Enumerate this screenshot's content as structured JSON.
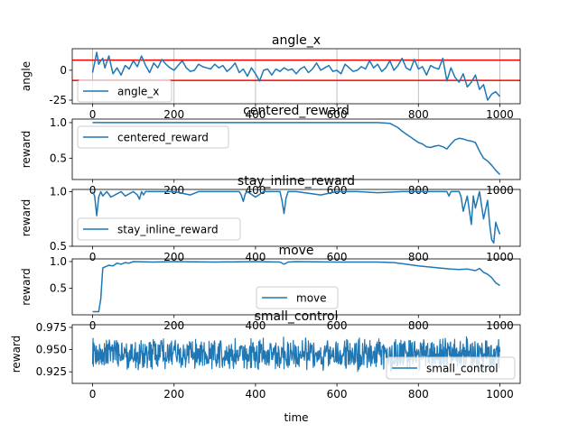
{
  "figure": {
    "xlabel": "time",
    "colors": {
      "series": "#1f77b4",
      "threshold": "#ff0000",
      "grid": "#b0b0b0",
      "axis": "#000000"
    }
  },
  "chart_data": [
    {
      "type": "line",
      "title": "angle_x",
      "xlabel": "",
      "ylabel": "angle",
      "xlim": [
        -50,
        1050
      ],
      "ylim": [
        -28,
        18
      ],
      "yticks": [
        "-25",
        "0"
      ],
      "xticks": [
        "0",
        "200",
        "400",
        "600",
        "800",
        "1000"
      ],
      "grid": "x",
      "legend": {
        "labels": [
          "angle_x"
        ],
        "placement": "lower-left"
      },
      "hlines": [
        8.5,
        -8.5
      ],
      "series": [
        {
          "name": "angle_x",
          "x": [
            0,
            10,
            15,
            20,
            25,
            30,
            40,
            50,
            60,
            70,
            80,
            90,
            100,
            110,
            120,
            130,
            140,
            150,
            160,
            170,
            180,
            190,
            200,
            210,
            220,
            230,
            240,
            250,
            260,
            270,
            280,
            290,
            300,
            310,
            320,
            330,
            340,
            350,
            360,
            370,
            380,
            390,
            400,
            410,
            420,
            430,
            440,
            450,
            460,
            470,
            480,
            490,
            500,
            510,
            520,
            530,
            540,
            550,
            560,
            570,
            580,
            590,
            600,
            610,
            620,
            630,
            640,
            650,
            660,
            670,
            680,
            690,
            700,
            710,
            720,
            730,
            740,
            750,
            760,
            770,
            780,
            790,
            800,
            810,
            820,
            830,
            840,
            850,
            860,
            870,
            880,
            890,
            900,
            910,
            920,
            930,
            940,
            950,
            960,
            970,
            980,
            990,
            1000
          ],
          "y": [
            -2,
            15,
            5,
            8,
            10,
            2,
            12,
            -3,
            2,
            -4,
            4,
            1,
            8,
            3,
            12,
            4,
            -2,
            6,
            2,
            9,
            5,
            2,
            0,
            4,
            8,
            2,
            -1,
            0,
            5,
            3,
            2,
            1,
            5,
            2,
            4,
            -1,
            2,
            6,
            -2,
            1,
            -5,
            2,
            -3,
            -9,
            0,
            1,
            -4,
            1,
            -1,
            2,
            0,
            1,
            -3,
            1,
            3,
            -2,
            1,
            6,
            0,
            2,
            4,
            -1,
            0,
            -3,
            5,
            2,
            -1,
            0,
            3,
            1,
            8,
            2,
            5,
            -1,
            2,
            8,
            0,
            4,
            10,
            2,
            0,
            9,
            1,
            3,
            -4,
            4,
            2,
            1,
            10,
            -9,
            2,
            -6,
            -10,
            -3,
            -14,
            -10,
            -4,
            -16,
            -12,
            -25,
            -20,
            -18,
            -22
          ]
        }
      ]
    },
    {
      "type": "line",
      "title": "centered_reward",
      "xlabel": "",
      "ylabel": "reward",
      "xlim": [
        -50,
        1050
      ],
      "ylim": [
        0.2,
        1.05
      ],
      "yticks": [
        "0.5",
        "1.0"
      ],
      "xticks": [
        "0",
        "200",
        "400",
        "600",
        "800",
        "1000"
      ],
      "grid": "none",
      "legend": {
        "labels": [
          "centered_reward"
        ],
        "placement": "upper-left"
      },
      "series": [
        {
          "name": "centered_reward",
          "x": [
            0,
            100,
            200,
            300,
            400,
            500,
            600,
            700,
            730,
            740,
            750,
            760,
            770,
            780,
            790,
            800,
            810,
            820,
            830,
            840,
            850,
            860,
            870,
            880,
            890,
            900,
            910,
            920,
            930,
            940,
            950,
            960,
            970,
            980,
            990,
            1000
          ],
          "y": [
            1.0,
            1.0,
            1.0,
            1.0,
            1.0,
            1.0,
            1.0,
            1.0,
            0.99,
            0.96,
            0.93,
            0.88,
            0.84,
            0.8,
            0.76,
            0.72,
            0.7,
            0.66,
            0.65,
            0.67,
            0.68,
            0.66,
            0.63,
            0.7,
            0.76,
            0.78,
            0.77,
            0.75,
            0.74,
            0.72,
            0.6,
            0.5,
            0.46,
            0.4,
            0.33,
            0.27
          ]
        }
      ]
    },
    {
      "type": "line",
      "title": "stay_inline_reward",
      "xlabel": "",
      "ylabel": "reward",
      "xlim": [
        -50,
        1050
      ],
      "ylim": [
        0.5,
        1.02
      ],
      "yticks": [
        "0.5",
        "1.0"
      ],
      "xticks": [
        "0",
        "200",
        "400",
        "600",
        "800",
        "1000"
      ],
      "grid": "none",
      "legend": {
        "labels": [
          "stay_inline_reward"
        ],
        "placement": "center-left"
      },
      "series": [
        {
          "name": "stay_inline_reward",
          "x": [
            0,
            5,
            10,
            15,
            20,
            25,
            35,
            45,
            60,
            70,
            80,
            100,
            110,
            115,
            120,
            125,
            130,
            150,
            200,
            240,
            260,
            300,
            360,
            365,
            370,
            375,
            380,
            400,
            420,
            440,
            460,
            465,
            470,
            475,
            480,
            500,
            560,
            600,
            650,
            700,
            760,
            800,
            850,
            870,
            875,
            880,
            890,
            900,
            905,
            910,
            920,
            930,
            935,
            940,
            950,
            960,
            970,
            975,
            980,
            985,
            990,
            995,
            1000
          ],
          "y": [
            1.0,
            0.96,
            0.78,
            0.95,
            1.0,
            0.96,
            1.0,
            0.95,
            0.98,
            1.0,
            0.96,
            1.0,
            0.97,
            0.93,
            1.0,
            0.97,
            1.0,
            1.0,
            1.0,
            0.97,
            1.0,
            1.0,
            1.0,
            0.97,
            0.91,
            0.98,
            1.0,
            0.95,
            1.0,
            1.0,
            1.0,
            0.92,
            0.8,
            0.94,
            1.0,
            1.0,
            0.97,
            1.0,
            1.0,
            0.99,
            1.0,
            1.0,
            1.0,
            1.0,
            0.96,
            1.0,
            1.0,
            1.0,
            0.95,
            0.82,
            0.96,
            0.7,
            0.96,
            0.85,
            1.0,
            0.75,
            0.92,
            0.7,
            0.56,
            0.53,
            0.72,
            0.66,
            0.61
          ]
        }
      ]
    },
    {
      "type": "line",
      "title": "move",
      "xlabel": "",
      "ylabel": "reward",
      "xlim": [
        -50,
        1050
      ],
      "ylim": [
        0.0,
        1.05
      ],
      "yticks": [
        "0.5",
        "1.0"
      ],
      "xticks": [
        "0",
        "200",
        "400",
        "600",
        "800",
        "1000"
      ],
      "grid": "none",
      "legend": {
        "labels": [
          "move"
        ],
        "placement": "lower-center"
      },
      "series": [
        {
          "name": "move",
          "x": [
            0,
            10,
            15,
            20,
            25,
            30,
            40,
            50,
            60,
            70,
            80,
            90,
            100,
            150,
            200,
            300,
            400,
            460,
            470,
            480,
            500,
            600,
            700,
            740,
            760,
            800,
            850,
            880,
            900,
            920,
            940,
            950,
            960,
            970,
            980,
            990,
            1000
          ],
          "y": [
            0.06,
            0.06,
            0.06,
            0.3,
            0.88,
            0.9,
            0.93,
            0.92,
            0.97,
            0.95,
            0.98,
            0.97,
            1.0,
            0.99,
            1.0,
            0.99,
            1.0,
            0.99,
            0.95,
            0.99,
            1.0,
            0.99,
            0.99,
            0.98,
            0.96,
            0.92,
            0.88,
            0.86,
            0.85,
            0.86,
            0.83,
            0.87,
            0.8,
            0.76,
            0.7,
            0.6,
            0.55
          ]
        }
      ]
    },
    {
      "type": "line",
      "title": "small_control",
      "xlabel": "time",
      "ylabel": "reward",
      "xlim": [
        -50,
        1050
      ],
      "ylim": [
        0.912,
        0.978
      ],
      "yticks": [
        "0.925",
        "0.950",
        "0.975"
      ],
      "xticks": [
        "0",
        "200",
        "400",
        "600",
        "800",
        "1000"
      ],
      "grid": "none",
      "legend": {
        "labels": [
          "small_control"
        ],
        "placement": "lower-right"
      },
      "noise": {
        "x_start": 0,
        "x_end": 1000,
        "center": 0.945,
        "amplitude": 0.02,
        "step": 1
      },
      "series": [
        {
          "name": "small_control",
          "x": [
            0,
            1000
          ],
          "y": [
            0.945,
            0.945
          ]
        }
      ]
    }
  ]
}
